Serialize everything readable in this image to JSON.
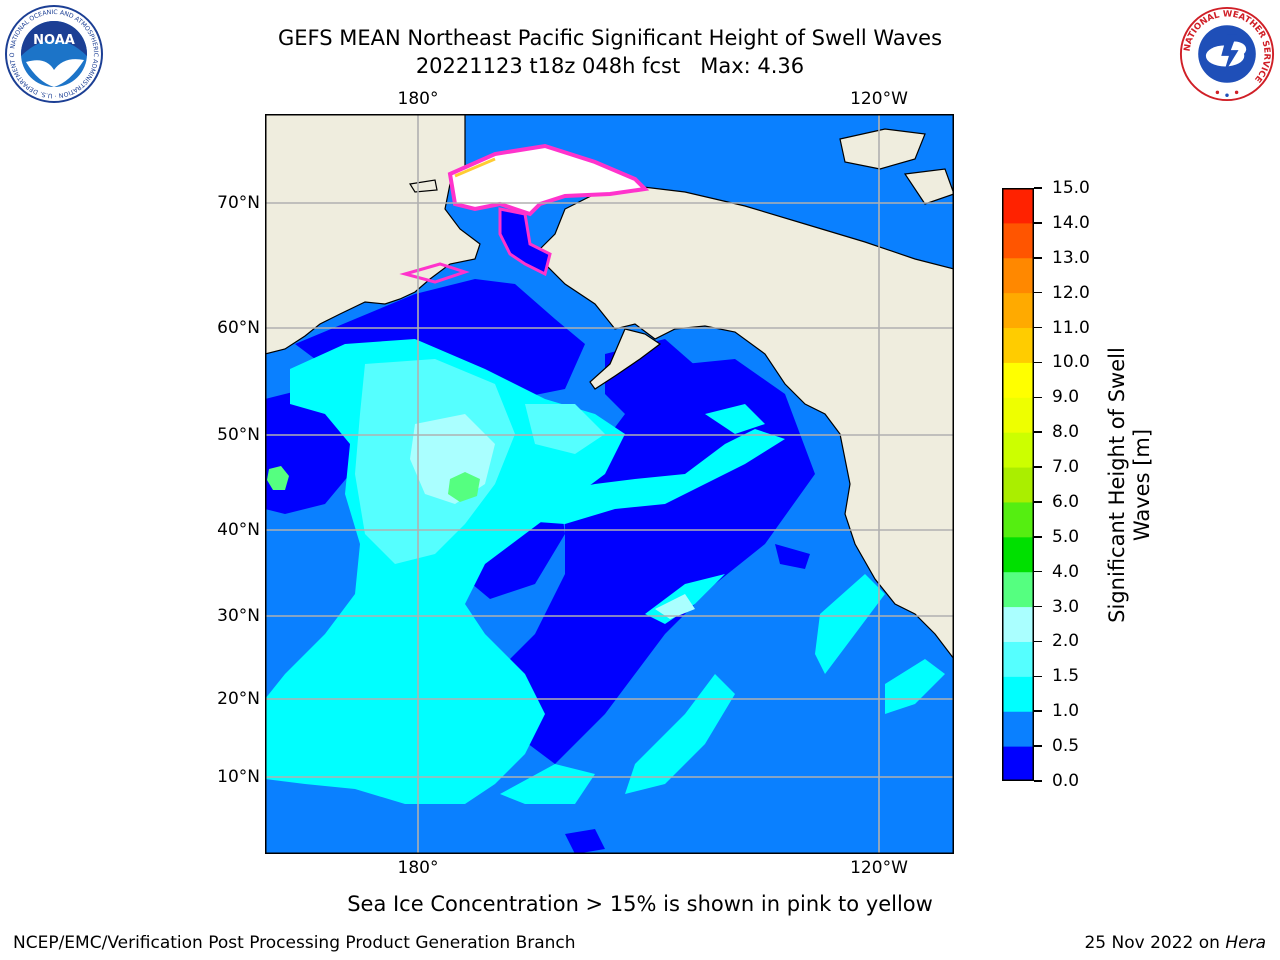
{
  "header": {
    "title_line1": "GEFS MEAN Northeast Pacific Significant Height of Swell Waves",
    "title_line2": "20221123 t18z 048h fcst   Max: 4.36"
  },
  "logos": {
    "left": "NOAA",
    "left_ring_text": "NATIONAL OCEANIC AND ATMOSPHERIC ADMINISTRATION · U.S. DEPARTMENT OF COMMERCE",
    "right_ring_text": "NATIONAL WEATHER SERVICE"
  },
  "map": {
    "lon_labels_top": [
      "180°",
      "120°W"
    ],
    "lon_labels_bottom": [
      "180°",
      "120°W"
    ],
    "lat_labels": [
      "70°N",
      "60°N",
      "50°N",
      "40°N",
      "30°N",
      "20°N",
      "10°N"
    ],
    "colors": {
      "land": "#efedde",
      "ocean_main": "#0a80ff",
      "grid": "#b0b0b0"
    }
  },
  "colorbar": {
    "title_line1": "Significant Height of Swell",
    "title_line2": "Waves [m]",
    "labels": [
      "0.0",
      "0.5",
      "1.0",
      "1.5",
      "2.0",
      "3.0",
      "4.0",
      "5.0",
      "6.0",
      "7.0",
      "8.0",
      "9.0",
      "10.0",
      "11.0",
      "12.0",
      "13.0",
      "14.0",
      "15.0"
    ],
    "colors": [
      "#0000ff",
      "#0a80ff",
      "#00ffff",
      "#55ffff",
      "#aaffff",
      "#55ff80",
      "#00e000",
      "#55ee11",
      "#aaee00",
      "#ccff00",
      "#eeff00",
      "#ffff00",
      "#ffcc00",
      "#ffaa00",
      "#ff8800",
      "#ff5500",
      "#ff2200",
      "#ff0000"
    ]
  },
  "note": "Sea Ice Concentration > 15% is shown in pink to yellow",
  "footer": {
    "left": "NCEP/EMC/Verification Post Processing Product Generation Branch",
    "right_prefix": "25 Nov 2022 on ",
    "right_italic": "Hera"
  }
}
